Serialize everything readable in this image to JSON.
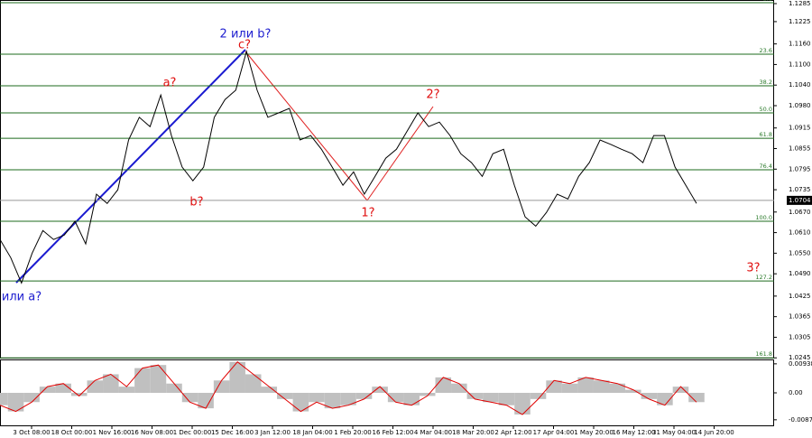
{
  "chart_data": [
    {
      "type": "line",
      "color": "#000000",
      "values": [
        1.059,
        1.0537,
        1.0463,
        1.055,
        1.0616,
        1.059,
        1.0603,
        1.0643,
        1.0577,
        1.0722,
        1.0695,
        1.0735,
        1.088,
        1.0946,
        1.0919,
        1.1011,
        1.0893,
        1.0801,
        1.0761,
        1.0801,
        1.0946,
        1.0998,
        1.1025,
        1.1138,
        1.1025,
        1.0946,
        1.0959,
        1.0972,
        1.088,
        1.0893,
        1.0853,
        1.0801,
        1.0748,
        1.0787,
        1.0722,
        1.0774,
        1.0827,
        1.0853,
        1.0906,
        1.0959,
        1.0919,
        1.0932,
        1.0893,
        1.084,
        1.0814,
        1.0774,
        1.084,
        1.0853,
        1.0748,
        1.0656,
        1.0629,
        1.0669,
        1.0722,
        1.0708,
        1.0774,
        1.0814,
        1.088,
        1.0867,
        1.0853,
        1.084,
        1.0814,
        1.0893,
        1.0893,
        1.0801,
        1.0748,
        1.0695
      ],
      "ylim": [
        1.0243,
        1.1288
      ],
      "yticks": [
        1.1285,
        1.1225,
        {
          "value": 1.116,
          "label": "1.1160"
        },
        {
          "value": 1.11,
          "label": "1.1100"
        },
        {
          "value": 1.104,
          "label": "1.1040"
        },
        {
          "value": 1.098,
          "label": "1.0980"
        },
        1.0915,
        1.0855,
        1.0795,
        1.0735,
        {
          "value": 1.067,
          "label": "1.0670"
        },
        {
          "value": 1.061,
          "label": "1.0610"
        },
        {
          "value": 1.055,
          "label": "1.0550"
        },
        {
          "value": 1.049,
          "label": "1.0490"
        },
        1.0425,
        1.0365,
        1.0305,
        1.0245
      ],
      "current_price": 1.0704,
      "fib_color": "#1e6b1e",
      "fib_levels": [
        {
          "value": 1.128,
          "label": "0.0"
        },
        {
          "value": 1.113,
          "label": "23.6"
        },
        {
          "value": 1.1038,
          "label": "38.2"
        },
        {
          "value": 1.0959,
          "label": "50.0"
        },
        {
          "value": 1.0885,
          "label": "61.8"
        },
        {
          "value": 1.0793,
          "label": "76.4"
        },
        {
          "value": 1.0643,
          "label": "100.0"
        },
        {
          "value": 1.0469,
          "label": "127.2"
        },
        {
          "value": 1.0245,
          "label": "161.8"
        }
      ],
      "annotations": [
        {
          "text": "2 или b?",
          "color": "#2020d0"
        },
        {
          "text": "c?",
          "color": "#e01010"
        },
        {
          "text": "a?",
          "color": "#e01010"
        },
        {
          "text": "b?",
          "color": "#e01010"
        },
        {
          "text": "1?",
          "color": "#e01010"
        },
        {
          "text": "2?",
          "color": "#e01010"
        },
        {
          "text": "3?",
          "color": "#e01010"
        },
        {
          "text": "или a?",
          "color": "#2020d0"
        }
      ],
      "x_tick_labels": [
        "3 Oct 08:00",
        "18 Oct 00:00",
        "1 Nov 16:00",
        "16 Nov 08:00",
        "1 Dec 00:00",
        "15 Dec 16:00",
        "3 Jan 12:00",
        "18 Jan 04:00",
        "1 Feb 20:00",
        "16 Feb 12:00",
        "4 Mar 04:00",
        "18 Mar 20:00",
        "2 Apr 12:00",
        "17 Apr 04:00",
        "1 May 20:00",
        "16 May 12:00",
        "31 May 04:00",
        "14 Jun 20:00"
      ]
    },
    {
      "type": "oscillator",
      "color": "#c0c0c0",
      "line_color": "#e00000",
      "values": [
        -0.004,
        -0.006,
        -0.003,
        0.002,
        0.003,
        -0.001,
        0.004,
        0.006,
        0.002,
        0.008,
        0.009,
        0.003,
        -0.003,
        -0.005,
        0.004,
        0.01,
        0.006,
        0.002,
        -0.002,
        -0.006,
        -0.003,
        -0.005,
        -0.004,
        -0.002,
        0.002,
        -0.003,
        -0.004,
        -0.001,
        0.005,
        0.003,
        -0.002,
        -0.003,
        -0.004,
        -0.007,
        -0.002,
        0.004,
        0.003,
        0.005,
        0.004,
        0.003,
        0.001,
        -0.002,
        -0.004,
        0.002,
        -0.003
      ],
      "ylim": [
        -0.0108,
        0.0108
      ],
      "yticks": [
        0.00938,
        {
          "value": 0,
          "label": "0.00"
        },
        -0.00871
      ]
    }
  ]
}
